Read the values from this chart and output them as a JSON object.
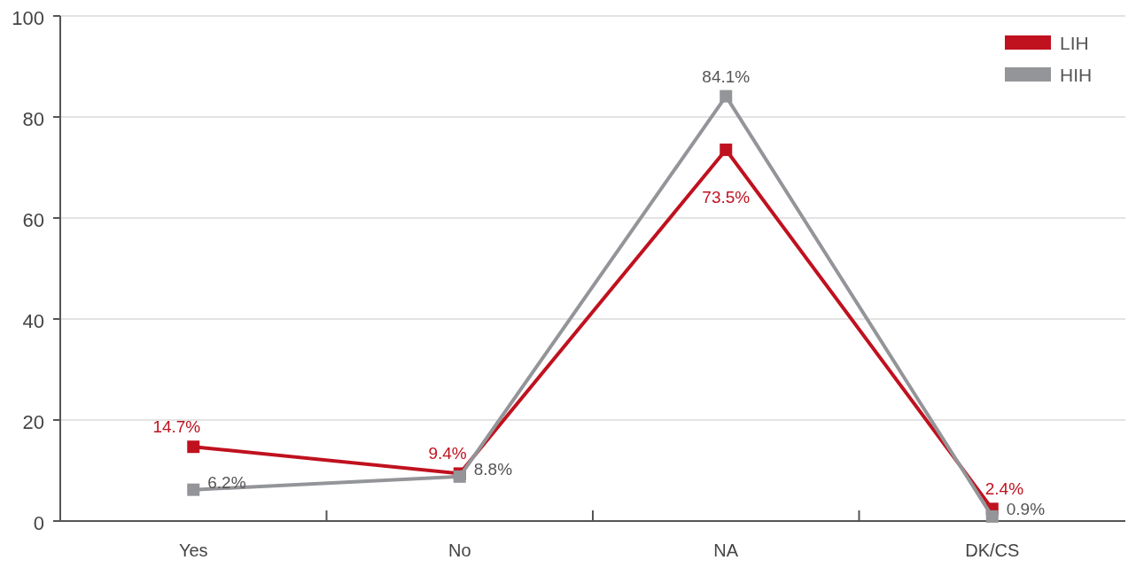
{
  "chart_data": {
    "type": "line",
    "categories": [
      "Yes",
      "No",
      "NA",
      "DK/CS"
    ],
    "series": [
      {
        "name": "LIH",
        "color": "#c0111f",
        "values": [
          14.7,
          9.4,
          73.5,
          2.4
        ],
        "value_labels": [
          "14.7%",
          "9.4%",
          "73.5%",
          "2.4%"
        ]
      },
      {
        "name": "HIH",
        "color": "#939598",
        "values": [
          6.2,
          8.8,
          84.1,
          0.9
        ],
        "value_labels": [
          "6.2%",
          "8.8%",
          "84.1%",
          "0.9%"
        ]
      }
    ],
    "ylim": [
      0,
      100
    ],
    "yticks": [
      0,
      20,
      40,
      60,
      80,
      100
    ],
    "grid": "y",
    "legend": "top right",
    "marker": "square",
    "line_style": "solid"
  }
}
